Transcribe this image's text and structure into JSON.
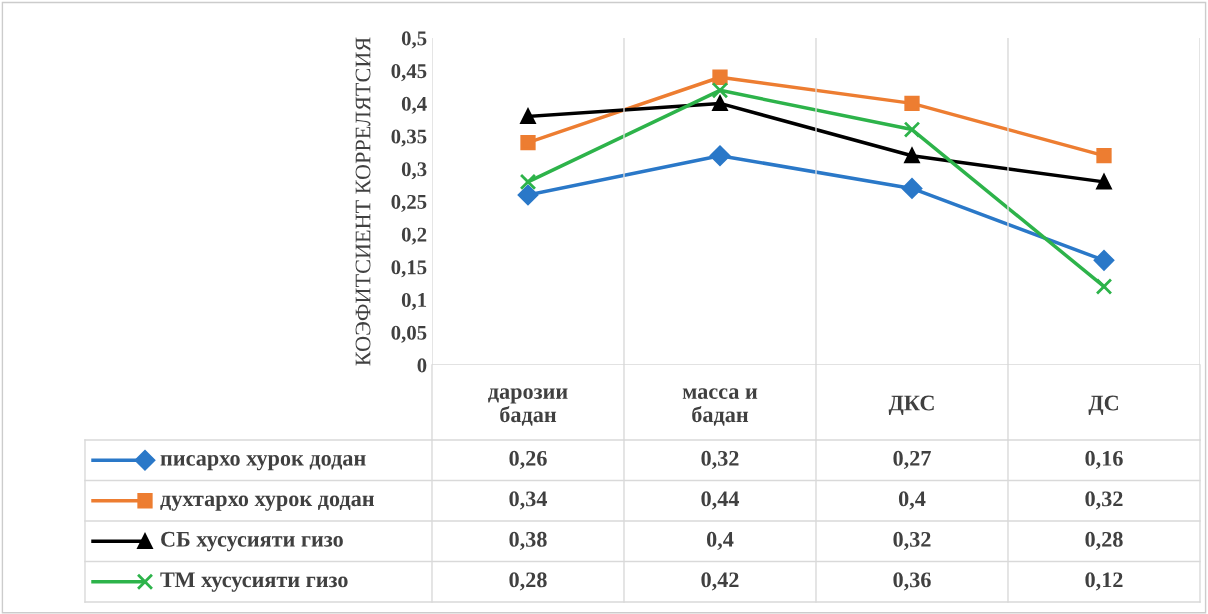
{
  "chart_data": {
    "type": "line",
    "ylabel": "КОЭФИТСИЕНТ КОРРЕЛЯТСИЯ",
    "categories": [
      "дарозии\nбадан",
      "масса и\nбадан",
      "ДКС",
      "ДС"
    ],
    "series": [
      {
        "name": "писархо хурок додан",
        "color": "#2a78c8",
        "marker": "diamond",
        "values": [
          0.26,
          0.32,
          0.27,
          0.16
        ],
        "value_labels": [
          "0,26",
          "0,32",
          "0,27",
          "0,16"
        ]
      },
      {
        "name": "духтархо хурок додан",
        "color": "#ed7d31",
        "marker": "square",
        "values": [
          0.34,
          0.44,
          0.4,
          0.32
        ],
        "value_labels": [
          "0,34",
          "0,44",
          "0,4",
          "0,32"
        ]
      },
      {
        "name": "СБ хусусияти гизо",
        "color": "#000000",
        "marker": "triangle",
        "values": [
          0.38,
          0.4,
          0.32,
          0.28
        ],
        "value_labels": [
          "0,38",
          "0,4",
          "0,32",
          "0,28"
        ]
      },
      {
        "name": "ТМ хусусияти гизо",
        "color": "#2db34a",
        "marker": "cross",
        "values": [
          0.28,
          0.42,
          0.36,
          0.12
        ],
        "value_labels": [
          "0,28",
          "0,42",
          "0,36",
          "0,12"
        ]
      }
    ],
    "ylim": [
      0,
      0.5
    ],
    "yticks": [
      {
        "value": 0,
        "label": "0"
      },
      {
        "value": 0.05,
        "label": "0,05"
      },
      {
        "value": 0.1,
        "label": "0,1"
      },
      {
        "value": 0.15,
        "label": "0,15"
      },
      {
        "value": 0.2,
        "label": "0,2"
      },
      {
        "value": 0.25,
        "label": "0,25"
      },
      {
        "value": 0.3,
        "label": "0,3"
      },
      {
        "value": 0.35,
        "label": "0,35"
      },
      {
        "value": 0.4,
        "label": "0,4"
      },
      {
        "value": 0.45,
        "label": "0,45"
      },
      {
        "value": 0.5,
        "label": "0,5"
      }
    ],
    "grid": "x",
    "legend": "bottom",
    "line_style": "solid"
  }
}
